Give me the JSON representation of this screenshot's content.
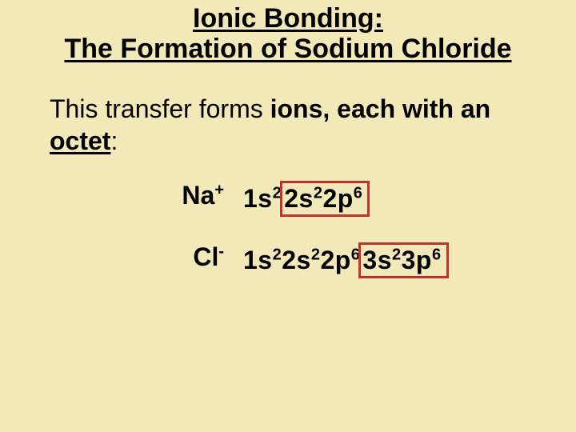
{
  "background_color": "#f3e9b8",
  "font_family": "Comic Sans MS",
  "title": {
    "line1": "Ionic Bonding:",
    "line2": "The Formation of Sodium Chloride",
    "fontsize": 34,
    "weight": "bold",
    "underline": true,
    "color": "#000000"
  },
  "body": {
    "pre": "This transfer forms ",
    "ions_word": "ions,",
    "mid": " each with an ",
    "octet_word": "octet",
    "post": ":",
    "fontsize": 32
  },
  "rows": [
    {
      "symbol": "Na",
      "charge": "+",
      "config_plain": {
        "t1": "1s",
        "s1": "2"
      },
      "highlight": {
        "t1": "2s",
        "s1": "2",
        "t2": "2p",
        "s2": "6"
      },
      "highlight_border_color": "#c4302b"
    },
    {
      "symbol": "Cl",
      "charge": "-",
      "config_plain": {
        "t1": "1s",
        "s1": "2",
        "t2": "2s",
        "s2": "2",
        "t3": "2p",
        "s3": "6"
      },
      "highlight": {
        "t1": "3s",
        "s1": "2",
        "t2": "3p",
        "s2": "6"
      },
      "highlight_border_color": "#c4302b"
    }
  ]
}
